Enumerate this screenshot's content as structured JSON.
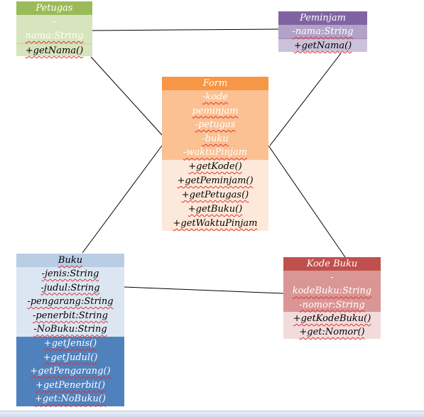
{
  "diagram": {
    "petugas": {
      "title": "Petugas",
      "attributes": [
        "-",
        "nama:String"
      ],
      "methods": [
        "+getNama()"
      ]
    },
    "peminjam": {
      "title": "Peminjam",
      "attributes": [
        "-nama:String"
      ],
      "methods": [
        "+getNama()"
      ]
    },
    "form": {
      "title": "Form",
      "attributes": [
        "-kode",
        "peminjam",
        "-petugas",
        "-buku",
        "-waktuPinjam"
      ],
      "methods": [
        "+getKode()",
        "+getPeminjam()",
        "+getPetugas()",
        "+getBuku()",
        "+getWaktuPinjam"
      ]
    },
    "buku": {
      "title": "Buku",
      "attributes": [
        "-jenis:String",
        "-judul:String",
        "-pengarang:String",
        "-penerbit:String",
        "-NoBuku:String"
      ],
      "methods": [
        "+getJenis()",
        "+getJudul()",
        "+getPengarang()",
        "+getPenerbit()",
        "+get:NoBuku()"
      ]
    },
    "kodebuku": {
      "title": "Kode Buku",
      "attributes": [
        "-",
        "kodeBuku:String",
        "-nomor:String"
      ],
      "methods": [
        "+getKodeBuku()",
        "+get:Nomor()"
      ]
    },
    "colors": {
      "petugas_header": "#9bbb59",
      "petugas_body": "#d7e4bd",
      "peminjam_header": "#8064a2",
      "peminjam_body": "#ccc1da",
      "form_header": "#f79646",
      "form_attr": "#fbc192",
      "form_methods": "#fde9d9",
      "buku_header": "#b9cde5",
      "buku_attr": "#dce6f2",
      "buku_methods": "#4f81bd",
      "kode_header": "#c0504d",
      "kode_attr": "#d99694",
      "kode_methods": "#f2dcdb"
    }
  }
}
